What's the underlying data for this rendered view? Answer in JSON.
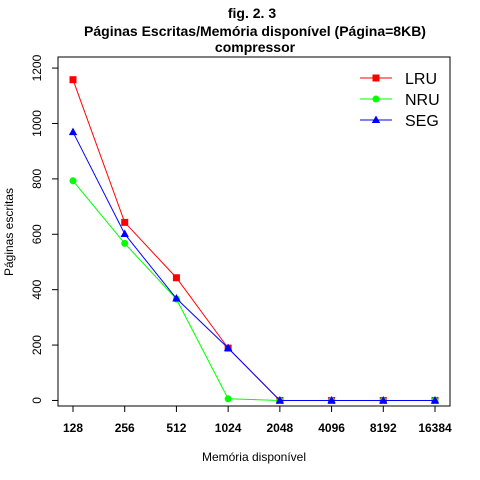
{
  "chart_data": {
    "type": "line",
    "title": "fig. 2. 3",
    "subtitle_lines": [
      "Páginas Escritas/Memória disponível (Página=8KB)",
      "compressor"
    ],
    "xlabel": "Memória disponível",
    "ylabel": "Páginas escritas",
    "categories": [
      "128",
      "256",
      "512",
      "1024",
      "2048",
      "4096",
      "8192",
      "16384"
    ],
    "yticks": [
      "0",
      "200",
      "400",
      "600",
      "800",
      "1000",
      "1200"
    ],
    "ylim": [
      -20,
      1240
    ],
    "grid": false,
    "legend_position": "top-right",
    "series": [
      {
        "name": "LRU",
        "color": "#ff0000",
        "marker": "square",
        "values": [
          1158,
          643,
          443,
          189,
          0,
          0,
          0,
          0
        ]
      },
      {
        "name": "NRU",
        "color": "#00ff00",
        "marker": "circle",
        "values": [
          793,
          567,
          366,
          6,
          0,
          0,
          0,
          0
        ]
      },
      {
        "name": "SEG",
        "color": "#0000ff",
        "marker": "triangle",
        "values": [
          969,
          601,
          368,
          189,
          0,
          0,
          0,
          0
        ]
      }
    ]
  }
}
